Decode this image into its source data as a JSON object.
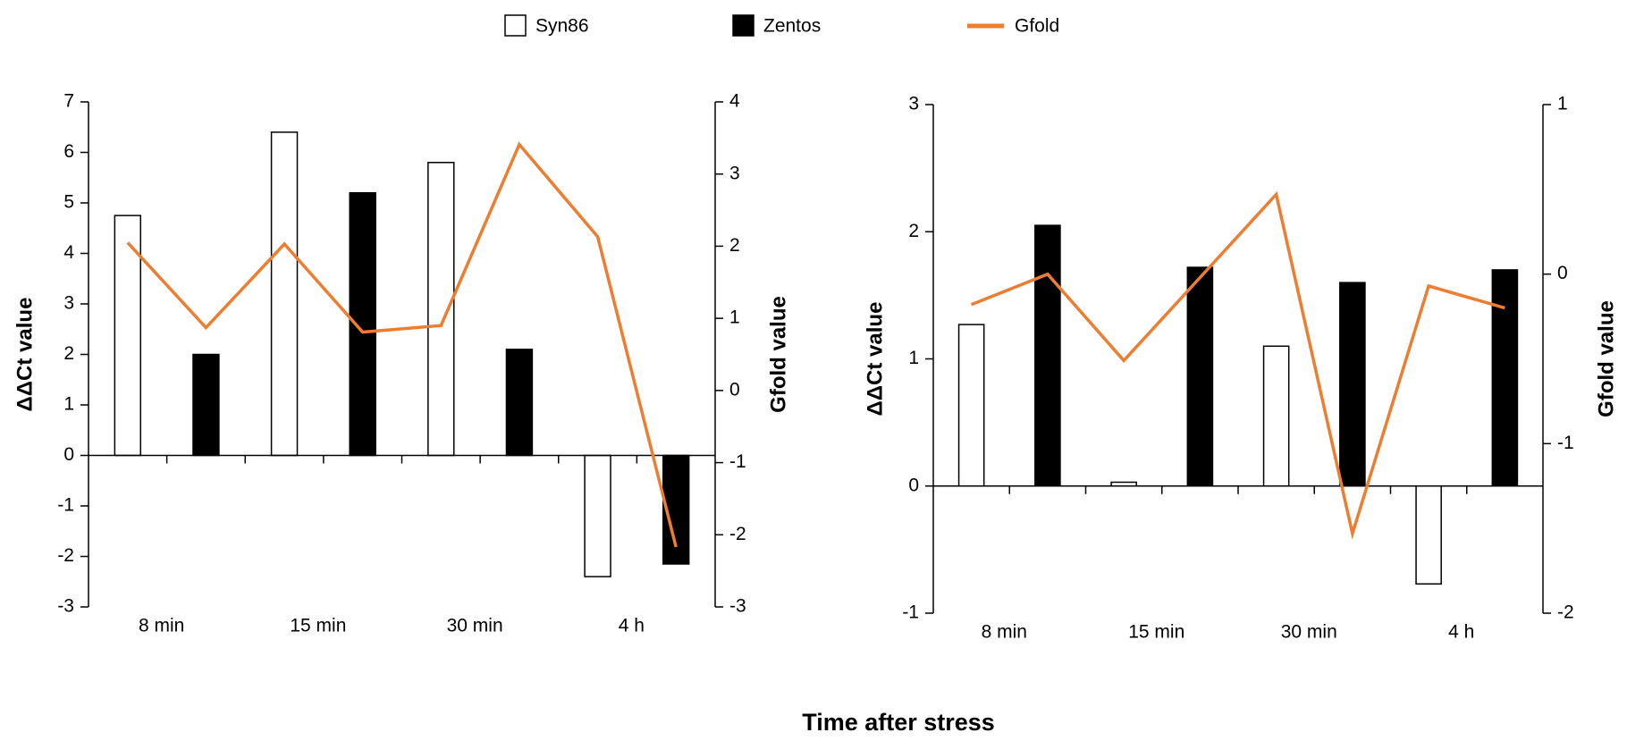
{
  "legend": [
    {
      "name": "Syn86",
      "color": "#ffffff"
    },
    {
      "name": "Zentos",
      "color": "#000000"
    },
    {
      "name": "Gfold",
      "color": "#ed7d31"
    }
  ],
  "xlabel": "Time after stress",
  "chart_data": [
    {
      "type": "bar-line",
      "ylabel": "ΔΔCt value",
      "y2label": "Gfold value",
      "categories": [
        "8 min",
        "15 min",
        "30 min",
        "4 h"
      ],
      "series": [
        {
          "values": [
            4.75,
            6.4,
            5.8,
            -2.4
          ]
        },
        {
          "values": [
            2.0,
            5.2,
            2.1,
            -2.15
          ]
        },
        {
          "axis": "y2",
          "values": [
            [
              2.05,
              0.87
            ],
            [
              2.03,
              0.81
            ],
            [
              0.9,
              3.41
            ],
            [
              2.13,
              -2.17
            ]
          ]
        }
      ],
      "ylim": [
        -3,
        7
      ],
      "yticks": [
        -3,
        -2,
        -1,
        0,
        1,
        2,
        3,
        4,
        5,
        6,
        7
      ],
      "y2lim": [
        -3,
        4
      ],
      "y2ticks": [
        -3,
        -2,
        -1,
        0,
        1,
        2,
        3,
        4
      ]
    },
    {
      "type": "bar-line",
      "ylabel": "ΔΔCt value",
      "y2label": "Gfold value",
      "categories": [
        "8 min",
        "15 min",
        "30 min",
        "4 h"
      ],
      "series": [
        {
          "values": [
            1.27,
            0.03,
            1.1,
            -0.77
          ]
        },
        {
          "values": [
            2.05,
            1.72,
            1.6,
            1.7
          ]
        },
        {
          "axis": "y2",
          "values": [
            [
              -0.18,
              0
            ],
            [
              -0.51,
              -0.02
            ],
            [
              0.47,
              -1.53
            ],
            [
              -0.07,
              -0.2
            ]
          ]
        }
      ],
      "ylim": [
        -1,
        3
      ],
      "yticks": [
        -1,
        0,
        1,
        2,
        3
      ],
      "y2lim": [
        -2,
        1
      ],
      "y2ticks": [
        -2,
        -1,
        0,
        1
      ]
    }
  ]
}
